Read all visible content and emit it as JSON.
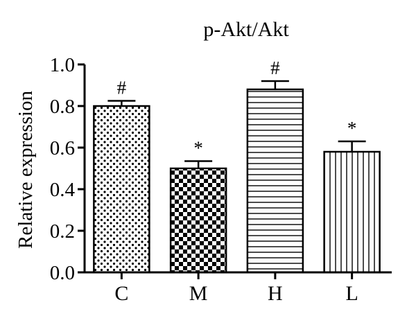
{
  "chart_data": {
    "type": "bar",
    "title": "p-Akt/Akt",
    "xlabel": "",
    "ylabel": "Relative expression",
    "ylim": [
      0,
      1.0
    ],
    "yticks": [
      "0.0",
      "0.2",
      "0.4",
      "0.6",
      "0.8",
      "1.0"
    ],
    "categories": [
      "C",
      "M",
      "H",
      "L"
    ],
    "values": [
      0.8,
      0.5,
      0.88,
      0.58
    ],
    "errors": [
      0.025,
      0.035,
      0.04,
      0.05
    ],
    "annotations": [
      "#",
      "*",
      "#",
      "*"
    ],
    "patterns": [
      "dots",
      "checker",
      "horizontal-lines",
      "vertical-lines"
    ],
    "grid": false,
    "legend": "none"
  }
}
